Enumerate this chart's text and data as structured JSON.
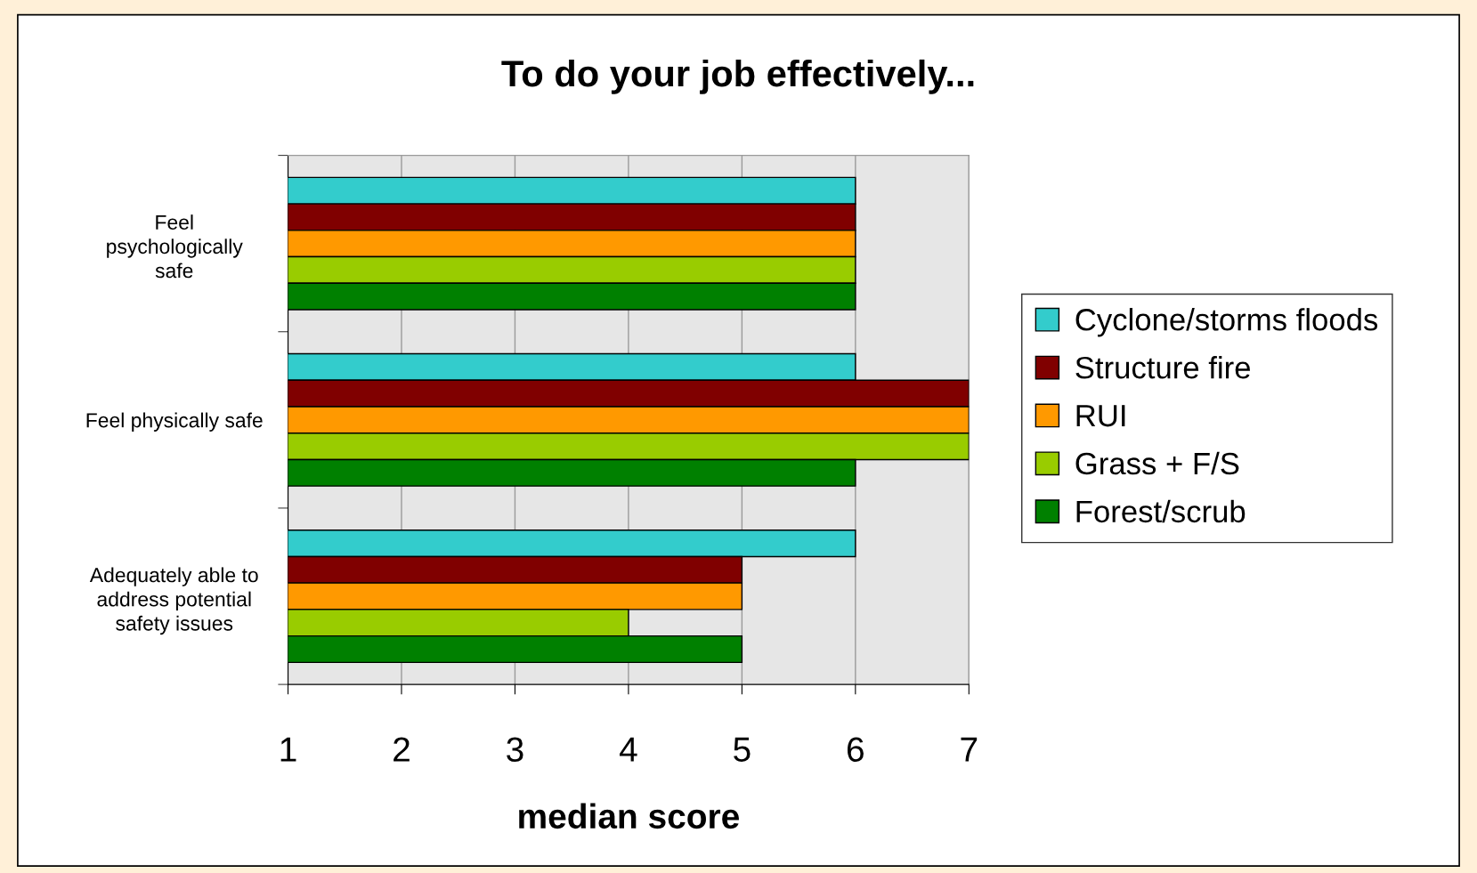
{
  "chart_data": {
    "type": "bar",
    "orientation": "horizontal",
    "title": "To do your job effectively...",
    "xlabel": "median score",
    "categories": [
      "Feel\npsychologically\nsafe",
      "Feel physically safe",
      "Adequately able to\naddress potential\nsafety issues"
    ],
    "series": [
      {
        "name": "Cyclone/storms floods",
        "color": "#33cccc",
        "values": [
          6,
          6,
          6
        ]
      },
      {
        "name": "Structure fire",
        "color": "#800000",
        "values": [
          6,
          7,
          5
        ]
      },
      {
        "name": "RUI",
        "color": "#ff9900",
        "values": [
          6,
          7,
          5
        ]
      },
      {
        "name": "Grass + F/S",
        "color": "#99cc00",
        "values": [
          6,
          7,
          4
        ]
      },
      {
        "name": "Forest/scrub",
        "color": "#008000",
        "values": [
          6,
          6,
          5
        ]
      }
    ],
    "xlim": [
      1,
      7
    ],
    "xticks": [
      1,
      2,
      3,
      4,
      5,
      6,
      7
    ],
    "grid": "x",
    "legend": "right"
  }
}
